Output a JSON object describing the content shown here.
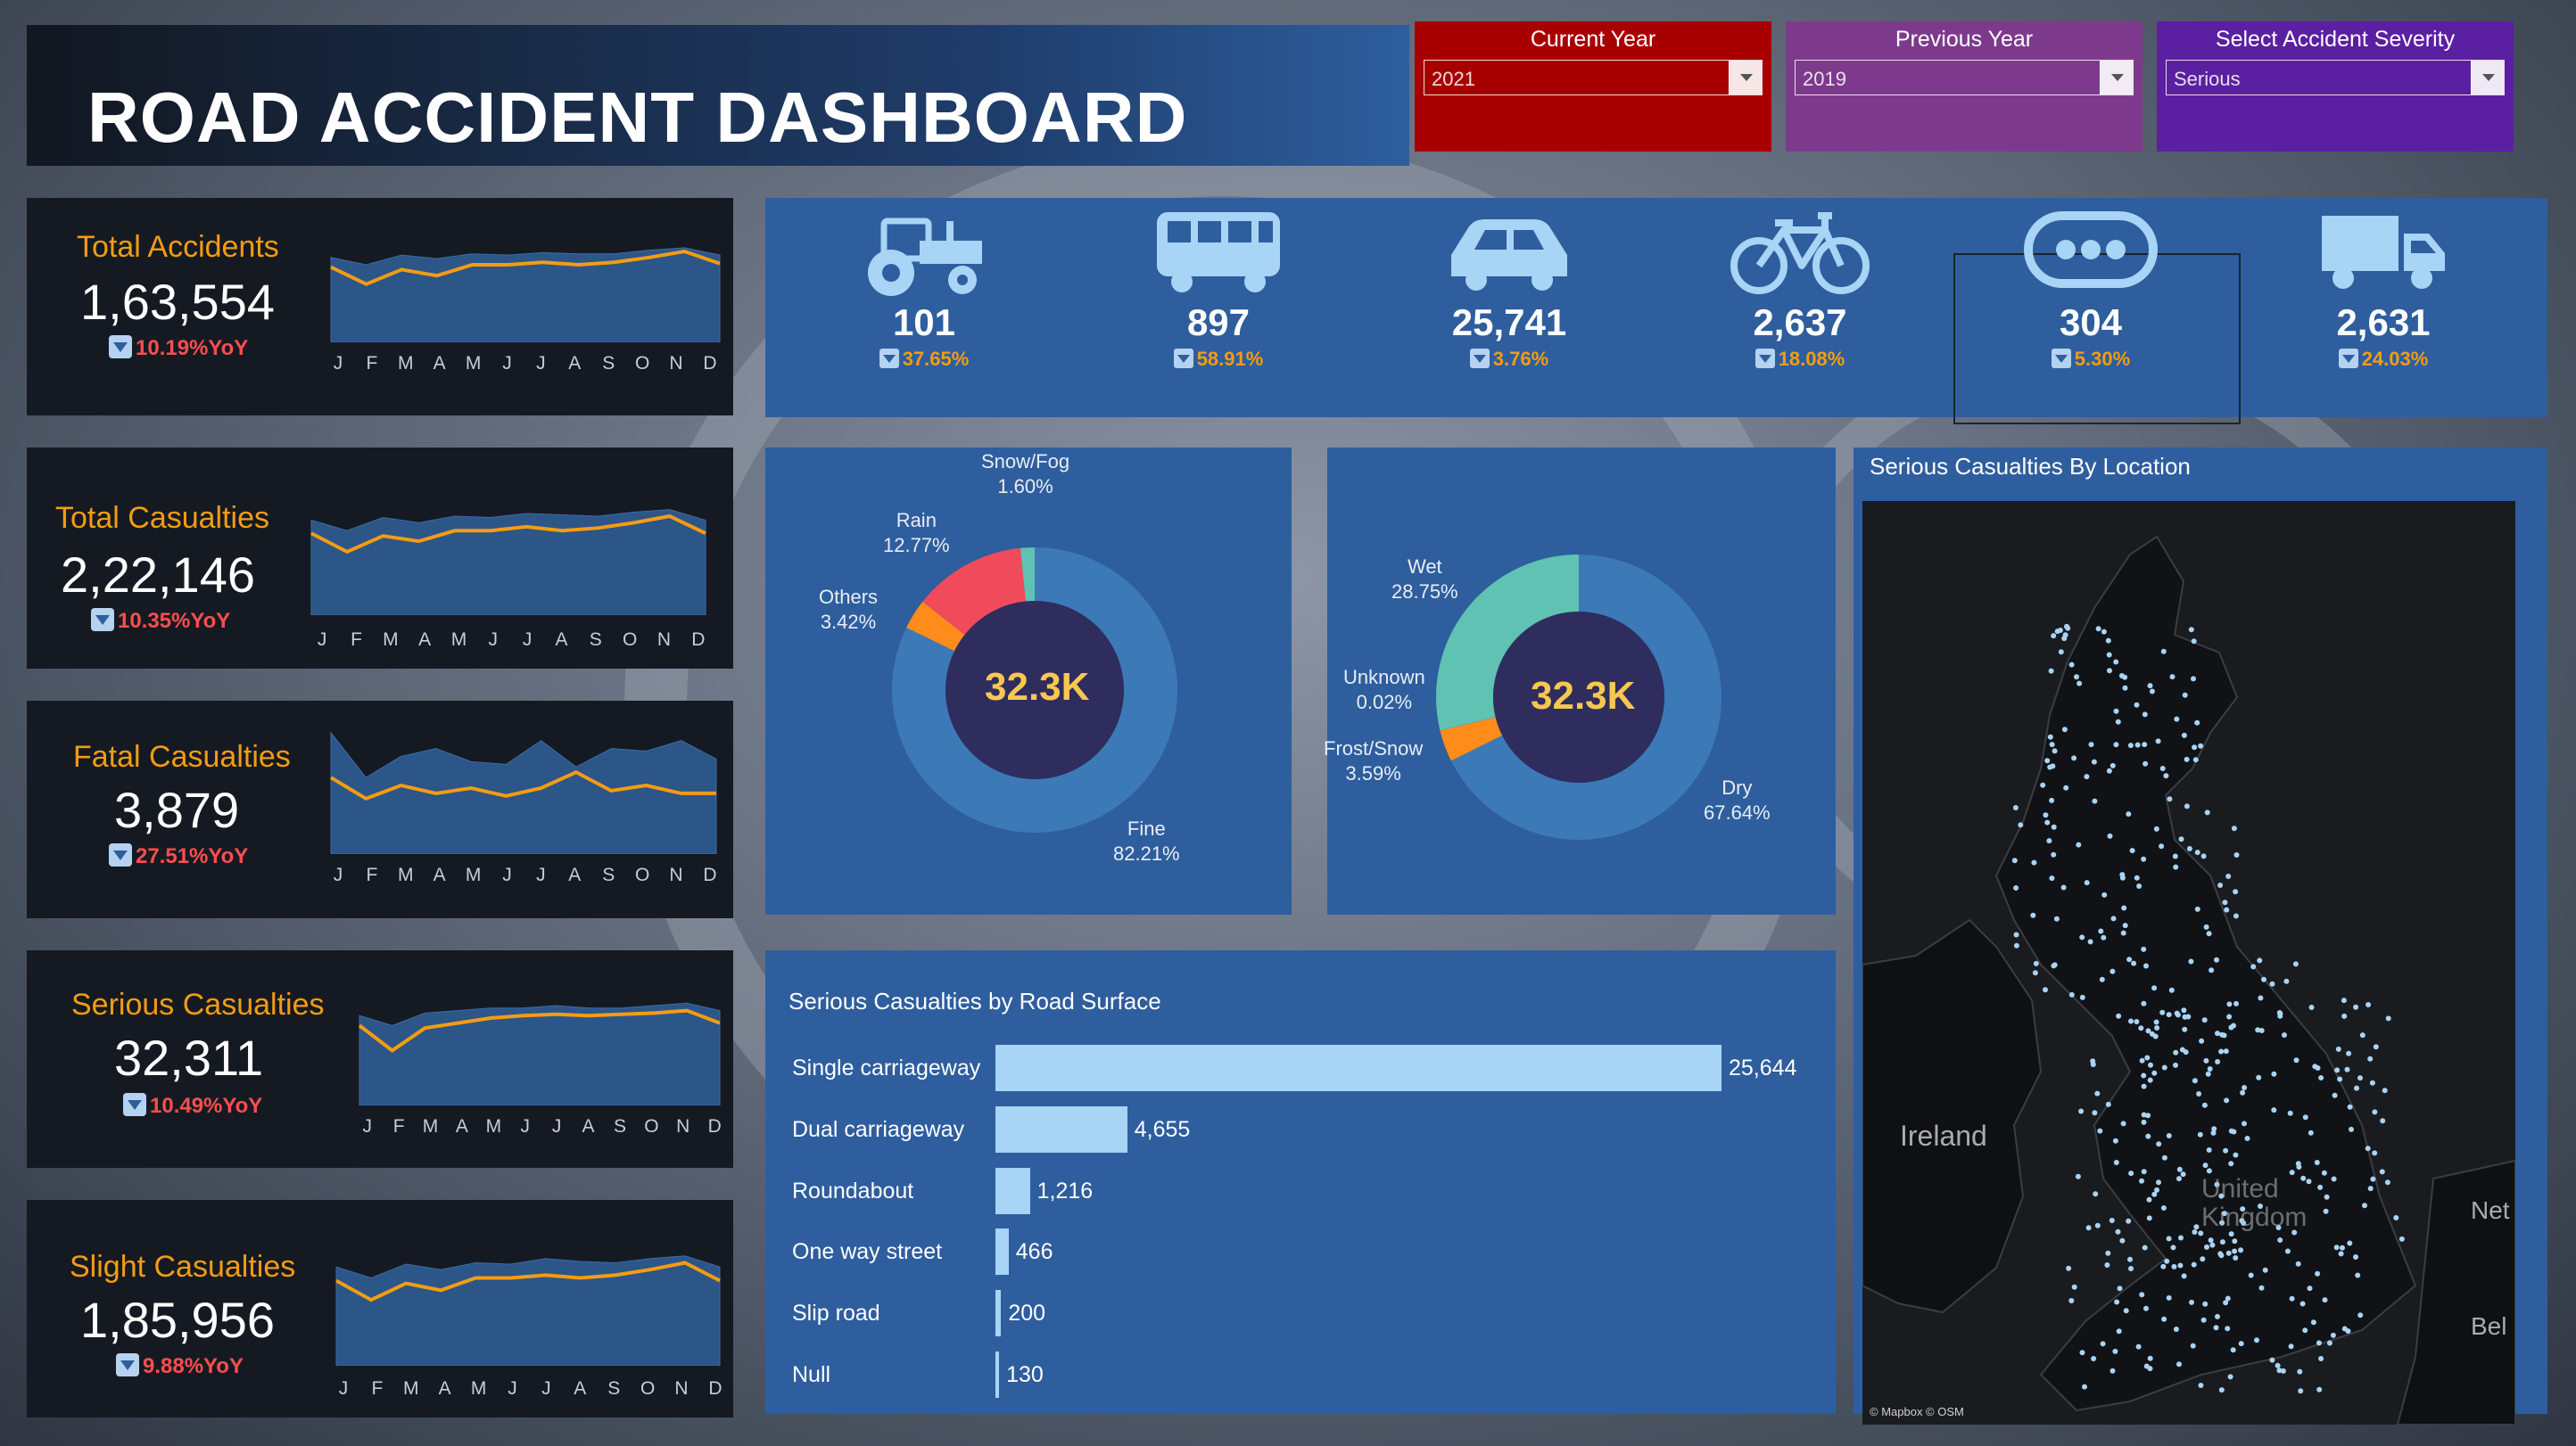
{
  "dashboard": {
    "title": "ROAD ACCIDENT DASHBOARD"
  },
  "filters": [
    {
      "label": "Current Year",
      "value": "2021",
      "color": "#a80000"
    },
    {
      "label": "Previous Year",
      "value": "2019",
      "color": "#7d3a8c"
    },
    {
      "label": "Select Accident Severity",
      "value": "Serious",
      "color": "#5b1fa1"
    }
  ],
  "months": [
    "J",
    "F",
    "M",
    "A",
    "M",
    "J",
    "J",
    "A",
    "S",
    "O",
    "N",
    "D"
  ],
  "kpis": [
    {
      "label": "Total Accidents",
      "value": "1,63,554",
      "yoy": "10.19%YoY",
      "current": [
        62,
        48,
        60,
        55,
        64,
        64,
        66,
        64,
        66,
        70,
        75,
        65
      ],
      "previous": [
        70,
        64,
        72,
        69,
        73,
        72,
        74,
        73,
        73,
        76,
        78,
        72
      ]
    },
    {
      "label": "Total Casualties",
      "value": "2,22,146",
      "yoy": "10.35%YoY",
      "current": [
        62,
        48,
        60,
        56,
        64,
        64,
        67,
        64,
        66,
        70,
        75,
        62
      ],
      "previous": [
        72,
        64,
        74,
        70,
        75,
        74,
        77,
        76,
        75,
        78,
        80,
        72
      ]
    },
    {
      "label": "Fatal Casualties",
      "value": "3,879",
      "yoy": "27.51%YoY",
      "current": [
        58,
        42,
        52,
        46,
        50,
        44,
        50,
        62,
        48,
        52,
        46,
        46
      ],
      "previous": [
        92,
        58,
        74,
        80,
        70,
        68,
        86,
        66,
        80,
        78,
        86,
        72
      ]
    },
    {
      "label": "Serious Casualties",
      "value": "32,311",
      "yoy": "10.49%YoY",
      "current": [
        64,
        44,
        62,
        66,
        70,
        72,
        73,
        72,
        73,
        74,
        76,
        66
      ],
      "previous": [
        72,
        64,
        74,
        76,
        78,
        78,
        80,
        78,
        78,
        80,
        82,
        76
      ]
    },
    {
      "label": "Slight Casualties",
      "value": "1,85,956",
      "yoy": "9.88%YoY",
      "current": [
        62,
        48,
        60,
        55,
        64,
        64,
        66,
        64,
        66,
        70,
        75,
        62
      ],
      "previous": [
        72,
        64,
        74,
        70,
        75,
        74,
        78,
        76,
        75,
        78,
        80,
        72
      ]
    }
  ],
  "vehicles": [
    {
      "name": "tractor-icon",
      "value": "101",
      "pct": "37.65%"
    },
    {
      "name": "bus-icon",
      "value": "897",
      "pct": "58.91%"
    },
    {
      "name": "car-icon",
      "value": "25,741",
      "pct": "3.76%"
    },
    {
      "name": "bicycle-icon",
      "value": "2,637",
      "pct": "18.08%"
    },
    {
      "name": "others-icon",
      "value": "304",
      "pct": "5.30%"
    },
    {
      "name": "truck-icon",
      "value": "2,631",
      "pct": "24.03%"
    }
  ],
  "weather_donut": {
    "center": "32.3K",
    "slices": [
      {
        "label": "Fine",
        "pct": "82.21%",
        "value": 82.21,
        "color": "#3c79b7"
      },
      {
        "label": "Others",
        "pct": "3.42%",
        "value": 3.42,
        "color": "#ff8c1a"
      },
      {
        "label": "Rain",
        "pct": "12.77%",
        "value": 12.77,
        "color": "#f04b5a"
      },
      {
        "label": "Snow/Fog",
        "pct": "1.60%",
        "value": 1.6,
        "color": "#5fc2b2"
      }
    ]
  },
  "surface_donut": {
    "center": "32.3K",
    "slices": [
      {
        "label": "Dry",
        "pct": "67.64%",
        "value": 67.64,
        "color": "#3c79b7"
      },
      {
        "label": "Frost/Snow",
        "pct": "3.59%",
        "value": 3.59,
        "color": "#ff8c1a"
      },
      {
        "label": "Unknown",
        "pct": "0.02%",
        "value": 0.02,
        "color": "#f04b5a"
      },
      {
        "label": "Wet",
        "pct": "28.75%",
        "value": 28.75,
        "color": "#5fc2b2"
      }
    ]
  },
  "road_surface": {
    "title": "Serious Casualties by Road Surface",
    "rows": [
      {
        "label": "Single carriageway",
        "value": 25644,
        "text": "25,644"
      },
      {
        "label": "Dual carriageway",
        "value": 4655,
        "text": "4,655"
      },
      {
        "label": "Roundabout",
        "value": 1216,
        "text": "1,216"
      },
      {
        "label": "One way street",
        "value": 466,
        "text": "466"
      },
      {
        "label": "Slip road",
        "value": 200,
        "text": "200"
      },
      {
        "label": "Null",
        "value": 130,
        "text": "130"
      }
    ]
  },
  "map": {
    "title": "Serious Casualties By Location",
    "labels": {
      "ireland": "Ireland",
      "uk": "United Kingdom",
      "net": "Net",
      "bel": "Bel"
    },
    "attribution": "© Mapbox © OSM"
  },
  "colors": {
    "panel": "#2e5e9e",
    "dark": "#151a22",
    "accent_orange": "#f39c12",
    "yoy_red": "#ff4d4d",
    "bar": "#a8d4f5",
    "icon": "#a8d4f5"
  }
}
